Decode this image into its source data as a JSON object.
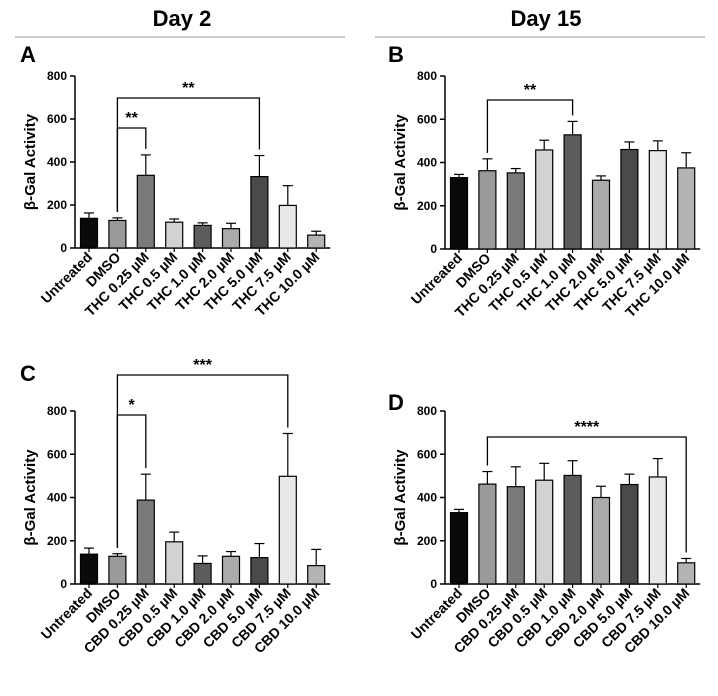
{
  "headers": {
    "left": "Day 2",
    "right": "Day 15"
  },
  "colors": {
    "Untreated": "#0a0a0a",
    "DMSO": "#9a9a9a",
    "0.25": "#7a7a7a",
    "0.5": "#d2d2d2",
    "1.0": "#5c5c5c",
    "2.0": "#aaaaaa",
    "5.0": "#4a4a4a",
    "7.5": "#e8e8e8",
    "10.0": "#b4b4b4"
  },
  "chart_data": [
    {
      "panel": "A",
      "type": "bar",
      "ylabel": "β-Gal Activity",
      "ylim": [
        0,
        800
      ],
      "yticks": [
        "0",
        "200",
        "400",
        "600",
        "800"
      ],
      "categories": [
        "Untreated",
        "DMSO",
        "THC 0.25 µM",
        "THC 0.5 µM",
        "THC 1.0 µM",
        "THC 2.0 µM",
        "THC 5.0 µM",
        "THC 7.5 µM",
        "THC 10.0 µM"
      ],
      "values": [
        138,
        128,
        338,
        120,
        105,
        90,
        332,
        198,
        60
      ],
      "errors": [
        25,
        12,
        95,
        15,
        12,
        25,
        98,
        92,
        18
      ],
      "significance": [
        {
          "from": 1,
          "to": 2,
          "label": "**"
        },
        {
          "from": 1,
          "to": 6,
          "label": "**"
        }
      ]
    },
    {
      "panel": "B",
      "type": "bar",
      "ylabel": "β-Gal Activity",
      "ylim": [
        0,
        800
      ],
      "yticks": [
        "0",
        "200",
        "400",
        "600",
        "800"
      ],
      "categories": [
        "Untreated",
        "DMSO",
        "THC 0.25 µM",
        "THC 0.5 µM",
        "THC 1.0 µM",
        "THC 2.0 µM",
        "THC 5.0 µM",
        "THC 7.5 µM",
        "THC 10.0 µM"
      ],
      "values": [
        330,
        362,
        352,
        458,
        528,
        318,
        460,
        455,
        375
      ],
      "errors": [
        15,
        55,
        20,
        45,
        62,
        20,
        35,
        45,
        70
      ],
      "significance": [
        {
          "from": 1,
          "to": 4,
          "label": "**"
        }
      ]
    },
    {
      "panel": "C",
      "type": "bar",
      "ylabel": "β-Gal Activity",
      "ylim": [
        0,
        800
      ],
      "yticks": [
        "0",
        "200",
        "400",
        "600",
        "800"
      ],
      "categories": [
        "Untreated",
        "DMSO",
        "CBD 0.25 µM",
        "CBD 0.5 µM",
        "CBD 1.0 µM",
        "CBD 2.0 µM",
        "CBD 5.0 µM",
        "CBD 7.5 µM",
        "CBD 10.0 µM"
      ],
      "values": [
        138,
        128,
        388,
        195,
        95,
        128,
        122,
        498,
        85
      ],
      "errors": [
        28,
        12,
        120,
        45,
        35,
        22,
        65,
        198,
        75
      ],
      "significance": [
        {
          "from": 1,
          "to": 2,
          "label": "*"
        },
        {
          "from": 1,
          "to": 7,
          "label": "***"
        }
      ]
    },
    {
      "panel": "D",
      "type": "bar",
      "ylabel": "β-Gal Activity",
      "ylim": [
        0,
        800
      ],
      "yticks": [
        "0",
        "200",
        "400",
        "600",
        "800"
      ],
      "categories": [
        "Untreated",
        "DMSO",
        "CBD 0.25 µM",
        "CBD 0.5 µM",
        "CBD 1.0 µM",
        "CBD 2.0 µM",
        "CBD 5.0 µM",
        "CBD 7.5 µM",
        "CBD 10.0 µM"
      ],
      "values": [
        330,
        462,
        450,
        480,
        502,
        400,
        460,
        495,
        98
      ],
      "errors": [
        15,
        58,
        92,
        78,
        68,
        52,
        48,
        85,
        20
      ],
      "significance": [
        {
          "from": 1,
          "to": 8,
          "label": "****"
        }
      ]
    }
  ]
}
